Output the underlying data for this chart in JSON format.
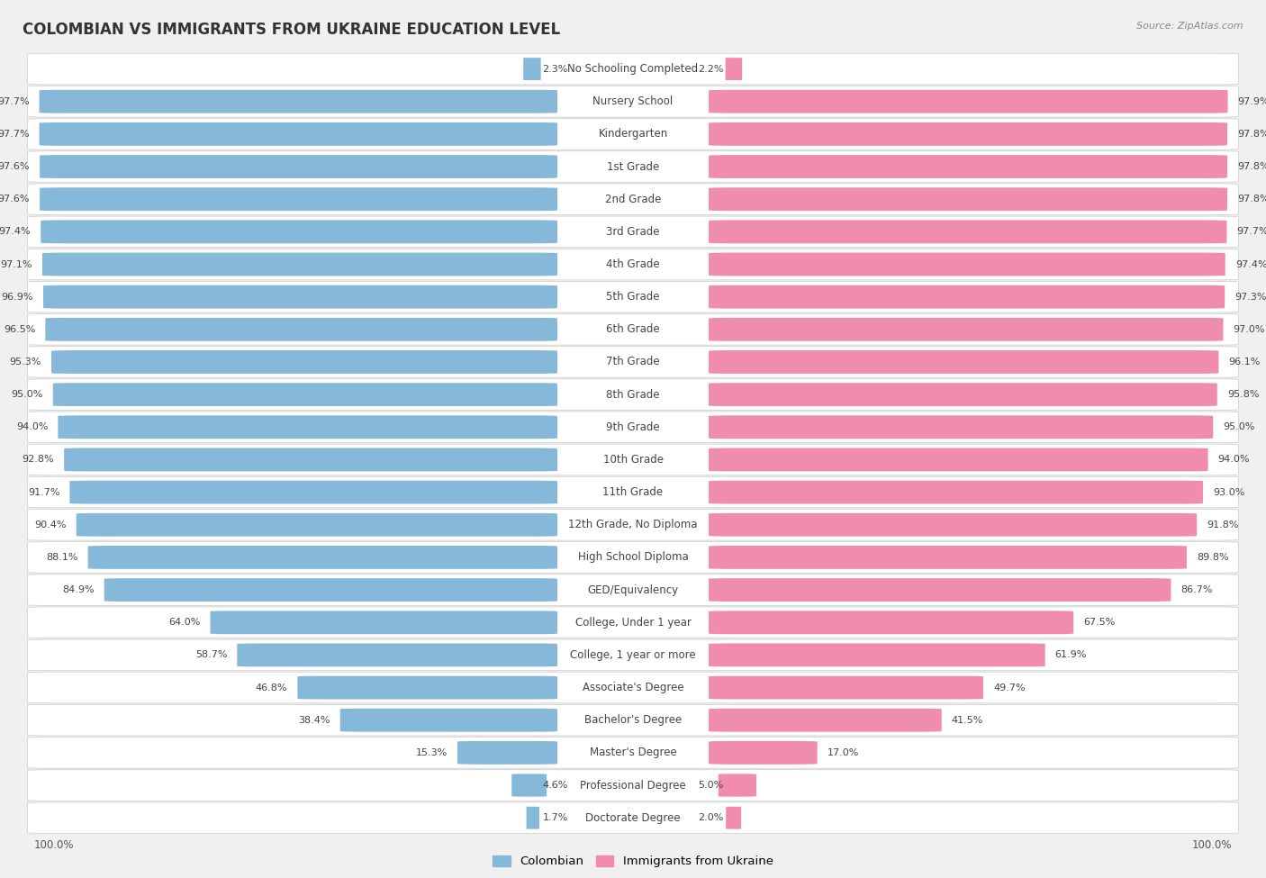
{
  "title": "COLOMBIAN VS IMMIGRANTS FROM UKRAINE EDUCATION LEVEL",
  "source": "Source: ZipAtlas.com",
  "categories": [
    "No Schooling Completed",
    "Nursery School",
    "Kindergarten",
    "1st Grade",
    "2nd Grade",
    "3rd Grade",
    "4th Grade",
    "5th Grade",
    "6th Grade",
    "7th Grade",
    "8th Grade",
    "9th Grade",
    "10th Grade",
    "11th Grade",
    "12th Grade, No Diploma",
    "High School Diploma",
    "GED/Equivalency",
    "College, Under 1 year",
    "College, 1 year or more",
    "Associate's Degree",
    "Bachelor's Degree",
    "Master's Degree",
    "Professional Degree",
    "Doctorate Degree"
  ],
  "colombian": [
    2.3,
    97.7,
    97.7,
    97.6,
    97.6,
    97.4,
    97.1,
    96.9,
    96.5,
    95.3,
    95.0,
    94.0,
    92.8,
    91.7,
    90.4,
    88.1,
    84.9,
    64.0,
    58.7,
    46.8,
    38.4,
    15.3,
    4.6,
    1.7
  ],
  "ukraine": [
    2.2,
    97.9,
    97.8,
    97.8,
    97.8,
    97.7,
    97.4,
    97.3,
    97.0,
    96.1,
    95.8,
    95.0,
    94.0,
    93.0,
    91.8,
    89.8,
    86.7,
    67.5,
    61.9,
    49.7,
    41.5,
    17.0,
    5.0,
    2.0
  ],
  "color_colombian": "#85b8d9",
  "color_ukraine": "#f08cac",
  "background_color": "#f0f0f0",
  "row_bg_color": "#ffffff",
  "title_fontsize": 12,
  "label_fontsize": 8.5,
  "value_fontsize": 8,
  "legend_fontsize": 9.5
}
